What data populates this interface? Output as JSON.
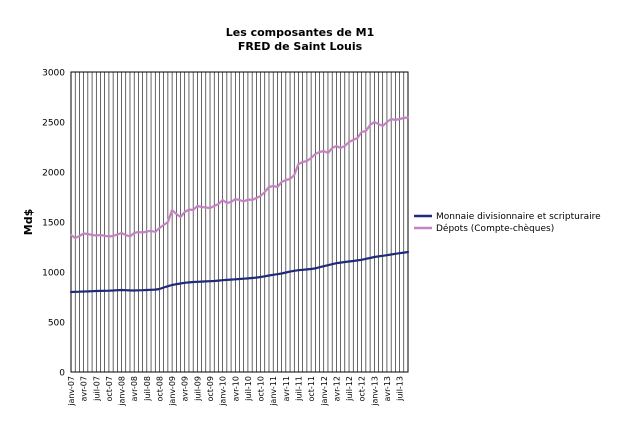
{
  "chart_data": {
    "type": "line",
    "title": "Les composantes de M1",
    "subtitle": "FRED de Saint Louis",
    "xlabel": "",
    "ylabel": "Md$",
    "ylim": [
      0,
      3000
    ],
    "yticks": [
      0,
      500,
      1000,
      1500,
      2000,
      2500,
      3000
    ],
    "grid": "vertical",
    "legend_position": "right",
    "x": [
      "janv-07",
      "févr-07",
      "mars-07",
      "avr-07",
      "mai-07",
      "juin-07",
      "juil-07",
      "août-07",
      "sept-07",
      "oct-07",
      "nov-07",
      "déc-07",
      "janv-08",
      "févr-08",
      "mars-08",
      "avr-08",
      "mai-08",
      "juin-08",
      "juil-08",
      "août-08",
      "sept-08",
      "oct-08",
      "nov-08",
      "déc-08",
      "janv-09",
      "févr-09",
      "mars-09",
      "avr-09",
      "mai-09",
      "juin-09",
      "juil-09",
      "août-09",
      "sept-09",
      "oct-09",
      "nov-09",
      "déc-09",
      "janv-10",
      "févr-10",
      "mars-10",
      "avr-10",
      "mai-10",
      "juin-10",
      "juil-10",
      "août-10",
      "sept-10",
      "oct-10",
      "nov-10",
      "déc-10",
      "janv-11",
      "févr-11",
      "mars-11",
      "avr-11",
      "mai-11",
      "juin-11",
      "juil-11",
      "août-11",
      "sept-11",
      "oct-11",
      "nov-11",
      "déc-11",
      "janv-12",
      "févr-12",
      "mars-12",
      "avr-12",
      "mai-12",
      "juin-12",
      "juil-12",
      "août-12",
      "sept-12",
      "oct-12",
      "nov-12",
      "déc-12",
      "janv-13",
      "févr-13",
      "mars-13",
      "avr-13",
      "mai-13",
      "juin-13",
      "juil-13",
      "août-13",
      "sept-13"
    ],
    "tick_labels": [
      "janv-07",
      "avr-07",
      "juil-07",
      "oct-07",
      "janv-08",
      "avr-08",
      "juil-08",
      "oct-08",
      "janv-09",
      "avr-09",
      "juil-09",
      "oct-09",
      "janv-10",
      "avr-10",
      "juil-10",
      "oct-10",
      "janv-11",
      "avr-11",
      "juil-11",
      "oct-11",
      "janv-12",
      "avr-12",
      "juil-12",
      "oct-12",
      "janv-13",
      "avr-13",
      "juil-13"
    ],
    "series": [
      {
        "name": "Monnaie divisionnaire et scripturaire",
        "color": "#1f2a7a",
        "values": [
          800,
          802,
          803,
          805,
          806,
          808,
          810,
          811,
          812,
          813,
          815,
          818,
          820,
          818,
          816,
          815,
          817,
          818,
          820,
          822,
          824,
          830,
          845,
          858,
          870,
          878,
          885,
          892,
          896,
          900,
          902,
          904,
          906,
          908,
          910,
          914,
          918,
          921,
          924,
          927,
          930,
          933,
          936,
          940,
          944,
          950,
          957,
          965,
          972,
          978,
          985,
          995,
          1004,
          1012,
          1018,
          1022,
          1026,
          1030,
          1036,
          1048,
          1058,
          1068,
          1078,
          1088,
          1094,
          1100,
          1105,
          1110,
          1116,
          1122,
          1132,
          1140,
          1150,
          1156,
          1162,
          1168,
          1175,
          1182,
          1188,
          1194,
          1200
        ]
      },
      {
        "name": "Dépots (Compte-chèques)",
        "color": "#c583c4",
        "values": [
          1370,
          1340,
          1360,
          1385,
          1380,
          1370,
          1365,
          1370,
          1362,
          1355,
          1360,
          1375,
          1390,
          1370,
          1355,
          1390,
          1400,
          1395,
          1405,
          1412,
          1400,
          1440,
          1470,
          1500,
          1620,
          1580,
          1550,
          1600,
          1625,
          1620,
          1660,
          1650,
          1645,
          1640,
          1660,
          1680,
          1720,
          1690,
          1700,
          1730,
          1720,
          1705,
          1725,
          1720,
          1740,
          1760,
          1800,
          1850,
          1860,
          1850,
          1900,
          1920,
          1930,
          1970,
          2080,
          2100,
          2110,
          2140,
          2180,
          2200,
          2210,
          2190,
          2240,
          2260,
          2240,
          2260,
          2300,
          2320,
          2340,
          2400,
          2410,
          2470,
          2500,
          2480,
          2460,
          2500,
          2530,
          2520,
          2530,
          2540,
          2545
        ]
      }
    ]
  }
}
